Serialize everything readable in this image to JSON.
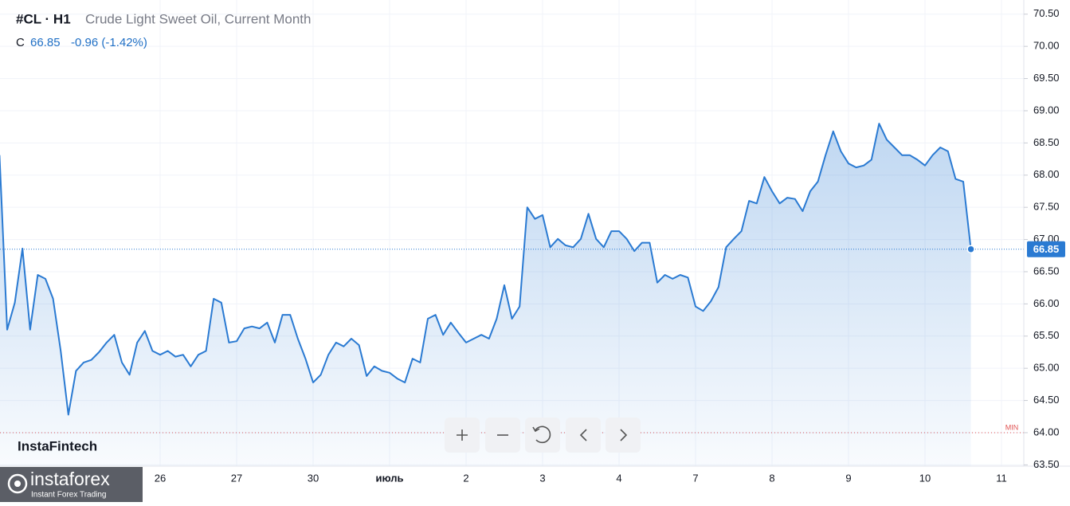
{
  "header": {
    "symbol": "#CL · H1",
    "description": "Crude Light Sweet Oil, Current Month",
    "close_label": "C",
    "close": 66.85,
    "change": "-0.96 (-1.42%)"
  },
  "branding": {
    "watermark": "InstaFintech",
    "logo": "instaforex",
    "tagline": "Instant Forex Trading"
  },
  "min_marker": {
    "label": "MIN",
    "value": 64.0
  },
  "chart_data": {
    "type": "area",
    "color": "#2a7ad2",
    "grid": true,
    "ylim": [
      63.48,
      70.72
    ],
    "yticks": [
      {
        "value": 63.5,
        "label": "63.50"
      },
      {
        "value": 64,
        "label": "64.00"
      },
      {
        "value": 64.5,
        "label": "64.50"
      },
      {
        "value": 65,
        "label": "65.00"
      },
      {
        "value": 65.5,
        "label": "65.50"
      },
      {
        "value": 66,
        "label": "66.00"
      },
      {
        "value": 66.5,
        "label": "66.50"
      },
      {
        "value": 67,
        "label": "67.00"
      },
      {
        "value": 67.5,
        "label": "67.50"
      },
      {
        "value": 68,
        "label": "68.00"
      },
      {
        "value": 68.5,
        "label": "68.50"
      },
      {
        "value": 69,
        "label": "69.00"
      },
      {
        "value": 69.5,
        "label": "69.50"
      },
      {
        "value": 70,
        "label": "70.00"
      },
      {
        "value": 70.5,
        "label": "70.50"
      }
    ],
    "categories": [
      null,
      null,
      null,
      null,
      null,
      null,
      null,
      null,
      null,
      null,
      null,
      null,
      null,
      null,
      null,
      null,
      null,
      null,
      null,
      null,
      null,
      "26",
      null,
      null,
      null,
      null,
      null,
      null,
      null,
      null,
      null,
      "27",
      null,
      null,
      null,
      null,
      null,
      null,
      null,
      null,
      null,
      "30",
      null,
      null,
      null,
      null,
      null,
      null,
      null,
      null,
      null,
      "июль",
      null,
      null,
      null,
      null,
      null,
      null,
      null,
      null,
      null,
      "2",
      null,
      null,
      null,
      null,
      null,
      null,
      null,
      null,
      null,
      "3",
      null,
      null,
      null,
      null,
      null,
      null,
      null,
      null,
      null,
      "4",
      null,
      null,
      null,
      null,
      null,
      null,
      null,
      null,
      null,
      "7",
      null,
      null,
      null,
      null,
      null,
      null,
      null,
      null,
      null,
      "8",
      null,
      null,
      null,
      null,
      null,
      null,
      null,
      null,
      null,
      "9",
      null,
      null,
      null,
      null,
      null,
      null,
      null,
      null,
      null,
      "10",
      null,
      null,
      null,
      null,
      null,
      null,
      null,
      null,
      null,
      "11"
    ],
    "values": [
      68.31,
      65.6,
      66.02,
      66.86,
      65.6,
      66.45,
      66.39,
      66.08,
      65.27,
      64.28,
      64.96,
      65.09,
      65.13,
      65.25,
      65.4,
      65.52,
      65.09,
      64.9,
      65.4,
      65.58,
      65.27,
      65.21,
      65.27,
      65.18,
      65.21,
      65.03,
      65.21,
      65.27,
      66.08,
      66.02,
      65.4,
      65.42,
      65.62,
      65.65,
      65.62,
      65.71,
      65.4,
      65.83,
      65.83,
      65.46,
      65.15,
      64.78,
      64.9,
      65.21,
      65.4,
      65.34,
      65.46,
      65.36,
      64.88,
      65.03,
      64.96,
      64.93,
      64.84,
      64.78,
      65.15,
      65.09,
      65.77,
      65.83,
      65.52,
      65.71,
      65.55,
      65.4,
      65.46,
      65.52,
      65.46,
      65.77,
      66.29,
      65.77,
      65.96,
      67.5,
      67.32,
      67.38,
      66.88,
      67.01,
      66.91,
      66.88,
      67.01,
      67.4,
      67.01,
      66.88,
      67.13,
      67.13,
      67.01,
      66.82,
      66.95,
      66.95,
      66.33,
      66.45,
      66.39,
      66.45,
      66.41,
      65.96,
      65.89,
      66.04,
      66.26,
      66.88,
      67.01,
      67.13,
      67.6,
      67.56,
      67.97,
      67.75,
      67.56,
      67.65,
      67.63,
      67.44,
      67.75,
      67.9,
      68.31,
      68.68,
      68.37,
      68.18,
      68.12,
      68.15,
      68.24,
      68.8,
      68.55,
      68.43,
      68.31,
      68.31,
      68.24,
      68.15,
      68.31,
      68.43,
      68.37,
      67.94,
      67.9,
      66.85,
      null,
      null,
      null,
      null
    ]
  }
}
